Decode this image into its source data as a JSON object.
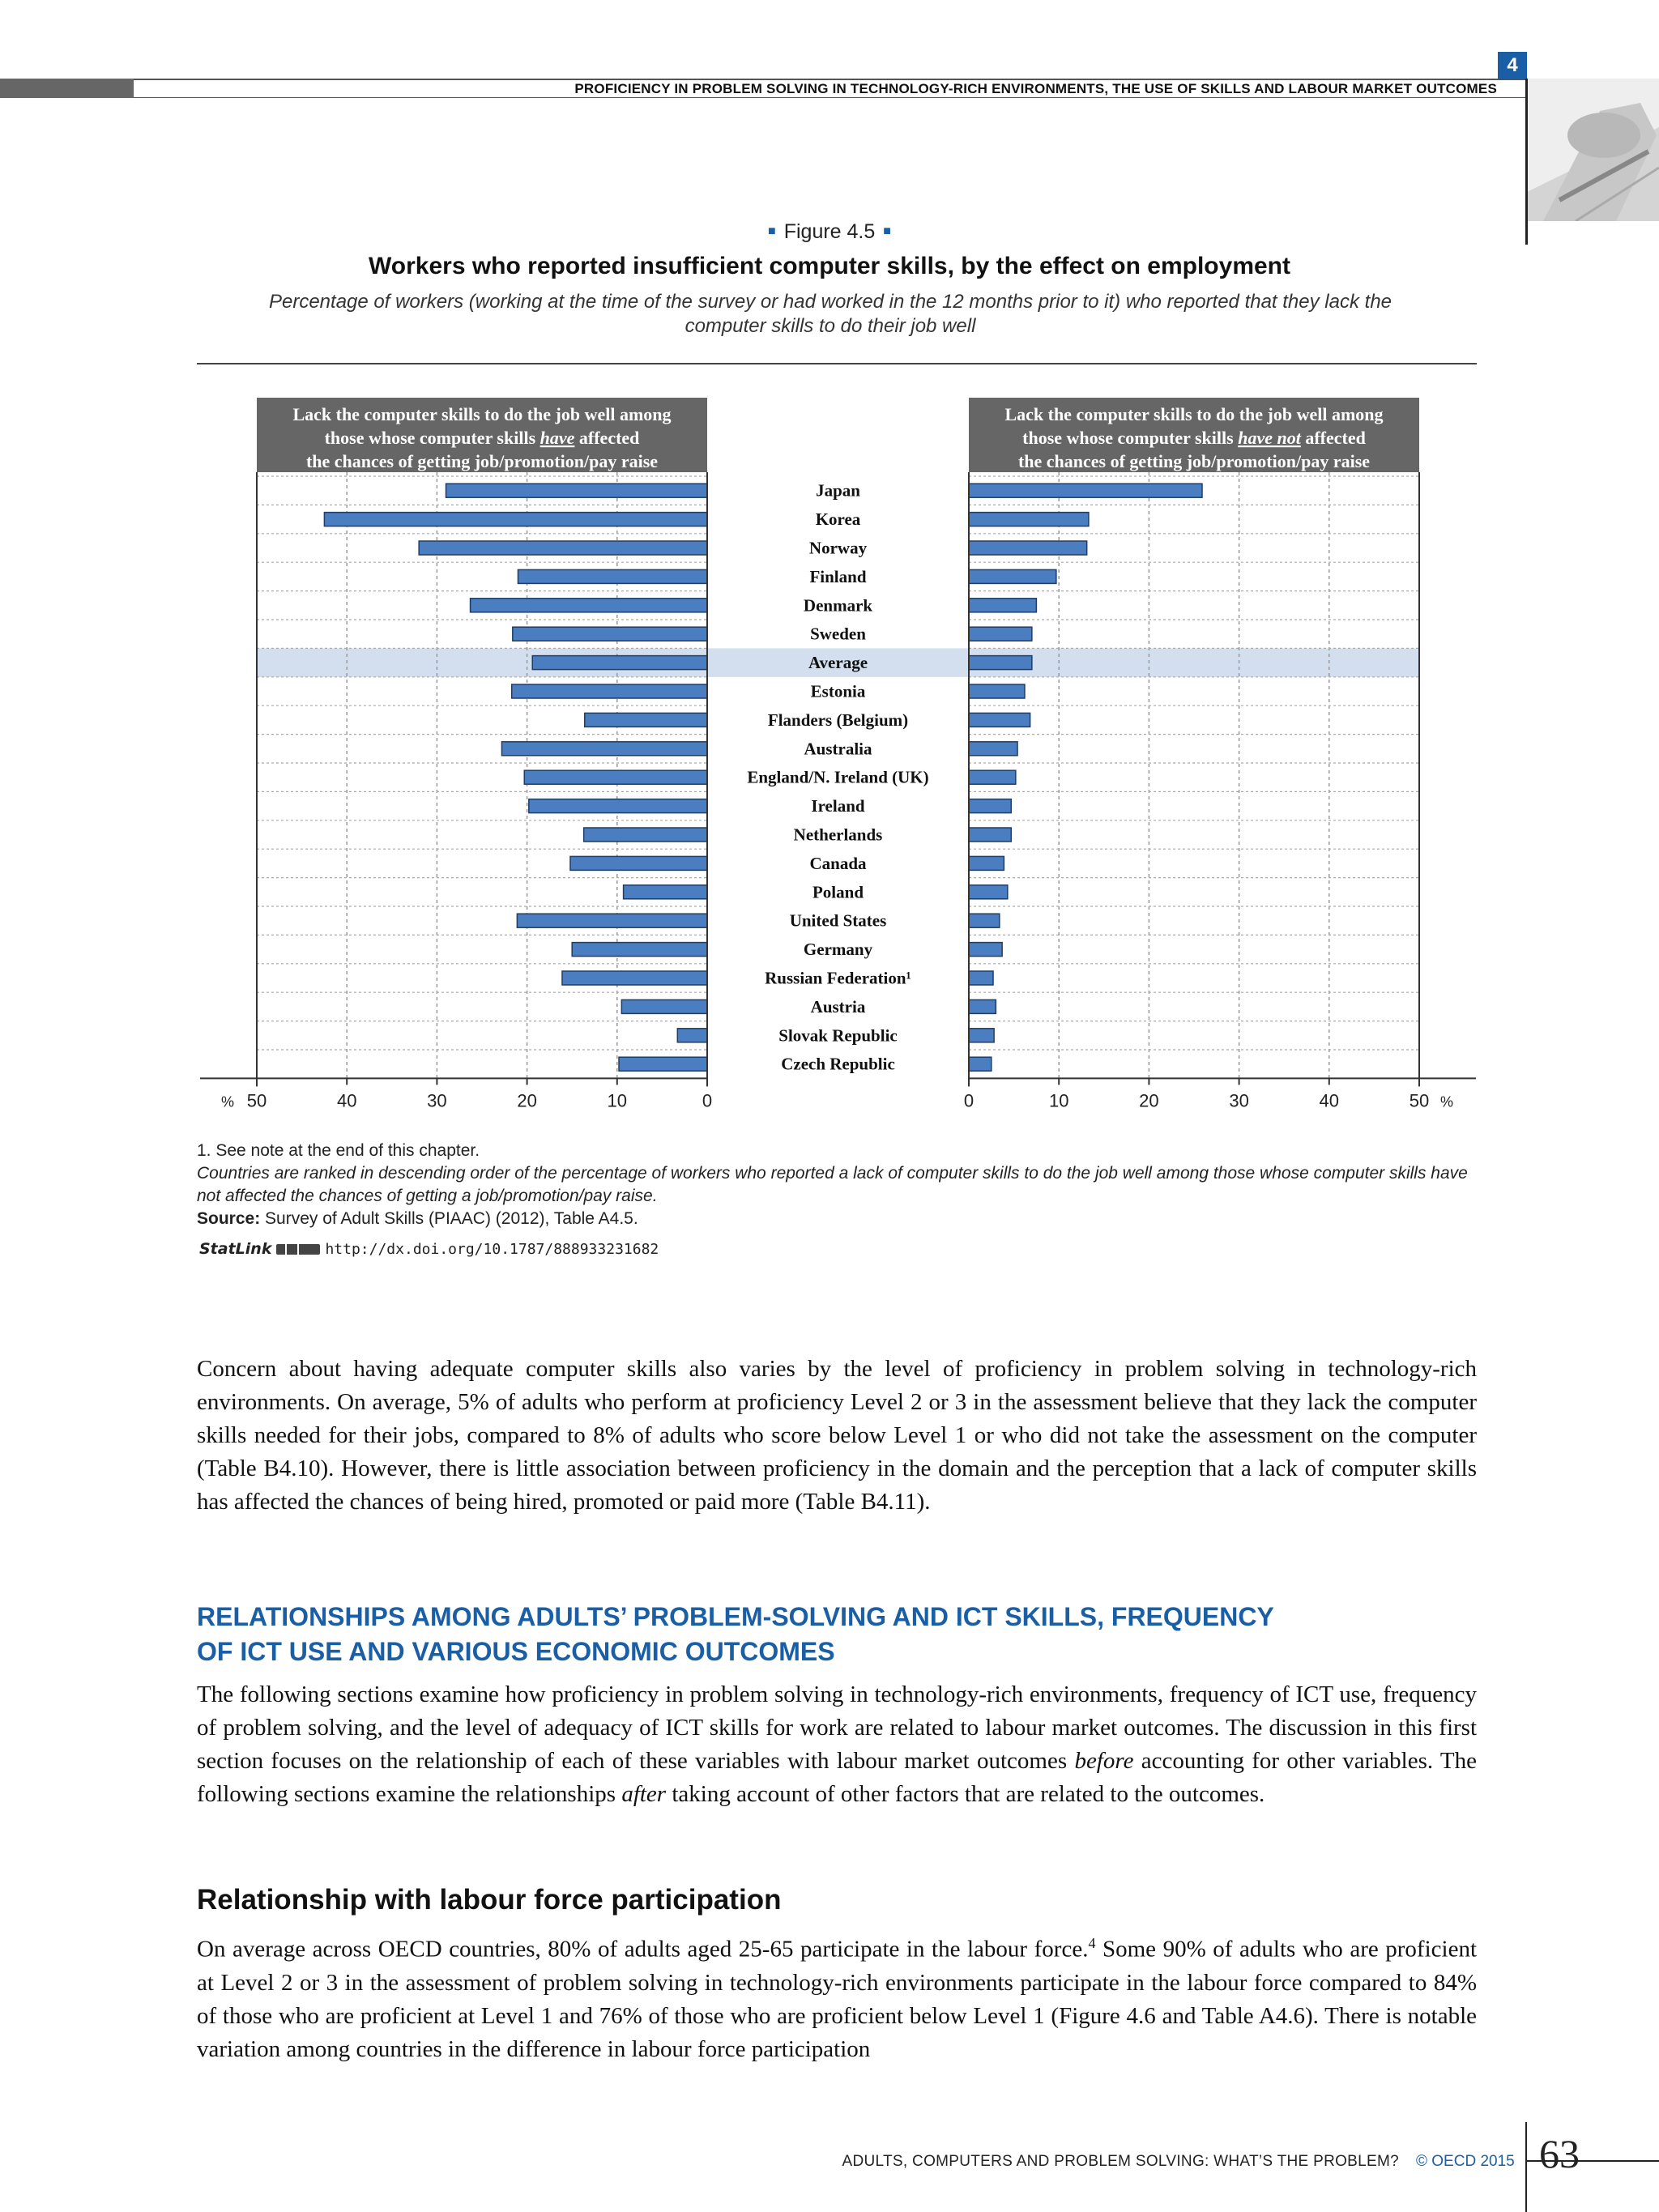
{
  "header": {
    "running_head": "PROFICIENCY IN PROBLEM SOLVING IN TECHNOLOGY-RICH ENVIRONMENTS, THE USE OF SKILLS AND LABOUR MARKET OUTCOMES",
    "chapter_number": "4"
  },
  "figure": {
    "label": "Figure 4.5",
    "title": "Workers who reported insufficient computer skills, by the effect on employment",
    "subtitle": "Percentage of workers (working at the time of the survey or had worked in the 12 months prior to it) who reported that they lack the computer skills to do their job well"
  },
  "chart_data": {
    "type": "bar",
    "orientation": "horizontal",
    "layout": "back-to-back",
    "highlight_category": "Average",
    "categories": [
      "Japan",
      "Korea",
      "Norway",
      "Finland",
      "Denmark",
      "Sweden",
      "Average",
      "Estonia",
      "Flanders (Belgium)",
      "Australia",
      "England/N. Ireland (UK)",
      "Ireland",
      "Netherlands",
      "Canada",
      "Poland",
      "United States",
      "Germany",
      "Russian Federation¹",
      "Austria",
      "Slovak Republic",
      "Czech Republic"
    ],
    "series": [
      {
        "name": "Lack the computer skills to do the job well among those whose computer skills have affected the chances of getting job/promotion/pay raise",
        "name_parts": {
          "pre": "Lack the computer skills to do the job well among those whose computer skills ",
          "emph": "have",
          "post": " affected the chances of getting job/promotion/pay raise"
        },
        "values": [
          29,
          42.5,
          32,
          21,
          26.3,
          21.6,
          19.4,
          21.7,
          13.6,
          22.8,
          20.3,
          19.8,
          13.7,
          15.2,
          9.3,
          21.1,
          15,
          16.1,
          9.5,
          3.3,
          9.8
        ]
      },
      {
        "name": "Lack the computer skills to do the job well among those whose computer skills have not affected the chances of getting job/promotion/pay raise",
        "name_parts": {
          "pre": "Lack the computer skills to do the job well among those whose computer skills ",
          "emph": "have not",
          "post": " affected the chances of getting job/promotion/pay raise"
        },
        "values": [
          25.9,
          13.3,
          13.1,
          9.7,
          7.5,
          7,
          7,
          6.2,
          6.8,
          5.4,
          5.2,
          4.7,
          4.7,
          3.9,
          4.3,
          3.4,
          3.7,
          2.7,
          3,
          2.8,
          2.5
        ]
      }
    ],
    "left_axis": {
      "ticks": [
        50,
        40,
        30,
        20,
        10,
        0
      ],
      "unit": "%"
    },
    "right_axis": {
      "ticks": [
        0,
        10,
        20,
        30,
        40,
        50
      ],
      "unit": "%"
    },
    "xlim": [
      0,
      50
    ],
    "grid": true,
    "colors": {
      "bar": "#4a7ec0",
      "bar_edge": "#1f3d66",
      "header_bg": "#666666",
      "highlight_bg": "#d3deef"
    }
  },
  "notes": {
    "note1": "1. See note at the end of this chapter.",
    "note2": "Countries are ranked in descending order of the percentage of workers who reported a lack of computer skills to do the job well among those whose computer skills have not affected the chances of getting a job/promotion/pay raise.",
    "source_label": "Source:",
    "source_text": " Survey of Adult Skills (PIAAC) (2012), Table A4.5.",
    "statlink_word": "StatLink",
    "statlink_url": "http://dx.doi.org/10.1787/888933231682"
  },
  "body": {
    "para1": "Concern about having adequate computer skills also varies by the level of proficiency in problem solving in technology-rich environments. On average, 5% of adults who perform at proficiency Level 2 or 3 in the assessment believe that they lack the computer skills needed for their jobs, compared to 8% of adults who score below Level 1 or who did not take the assessment on the computer (Table B4.10). However, there is little association between proficiency in the domain and the perception that a lack of computer skills has affected the chances of being hired, promoted or paid more (Table B4.11).",
    "heading2_line1": "RELATIONSHIPS AMONG ADULTS’ PROBLEM-SOLVING AND ICT SKILLS, FREQUENCY",
    "heading2_line2": "OF ICT USE AND VARIOUS ECONOMIC OUTCOMES",
    "para2_a": "The following sections examine how proficiency in problem solving in technology-rich environments, frequency of ICT use, frequency of problem solving, and the level of adequacy of ICT skills for work are related to labour market outcomes. The discussion in this first section focuses on the relationship of each of these variables with labour market outcomes ",
    "para2_em1": "before",
    "para2_b": " accounting for other variables. The following sections examine the relationships ",
    "para2_em2": "after",
    "para2_c": " taking account of other factors that are related to the outcomes.",
    "heading3": "Relationship with labour force participation",
    "para3_a": "On average across OECD countries, 80% of adults aged 25-65 participate in the labour force.",
    "para3_sup": "4",
    "para3_b": " Some 90% of adults who are proficient at Level 2 or 3 in the assessment of problem solving in technology-rich environments participate in the labour force compared to 84% of those who are proficient at Level 1 and 76% of those who are proficient below Level 1 (Figure 4.6 and Table A4.6). There is notable variation among countries in the difference in labour force participation"
  },
  "footer": {
    "book_title": "ADULTS, COMPUTERS AND PROBLEM SOLVING: WHAT’S THE PROBLEM?",
    "copyright": "© OECD 2015",
    "page_number": "63"
  }
}
